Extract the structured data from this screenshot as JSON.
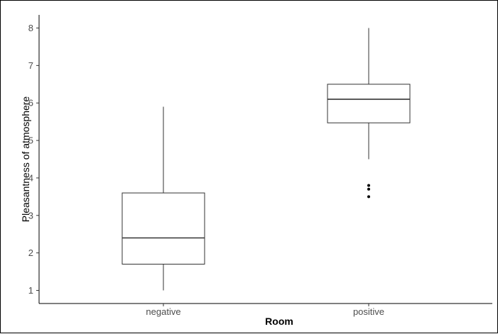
{
  "chart_data": {
    "type": "boxplot",
    "title": "",
    "xlabel": "Room",
    "ylabel": "Pleasantness of atmosphere",
    "categories": [
      "negative",
      "positive"
    ],
    "boxes": [
      {
        "category": "negative",
        "min": 1.0,
        "q1": 1.7,
        "median": 2.4,
        "q3": 3.6,
        "max": 5.9,
        "outliers": []
      },
      {
        "category": "positive",
        "min": 4.5,
        "q1": 5.47,
        "median": 6.1,
        "q3": 6.5,
        "max": 8.0,
        "outliers": [
          3.8,
          3.7,
          3.5
        ]
      }
    ],
    "yticks": [
      1,
      2,
      3,
      4,
      5,
      6,
      7,
      8
    ],
    "ylim": [
      0.65,
      8.35
    ],
    "grid": false,
    "legend": "none",
    "colors": {
      "box_fill": "#ffffff",
      "box_stroke": "#333333",
      "axis": "#000000",
      "outlier": "#000000"
    }
  }
}
